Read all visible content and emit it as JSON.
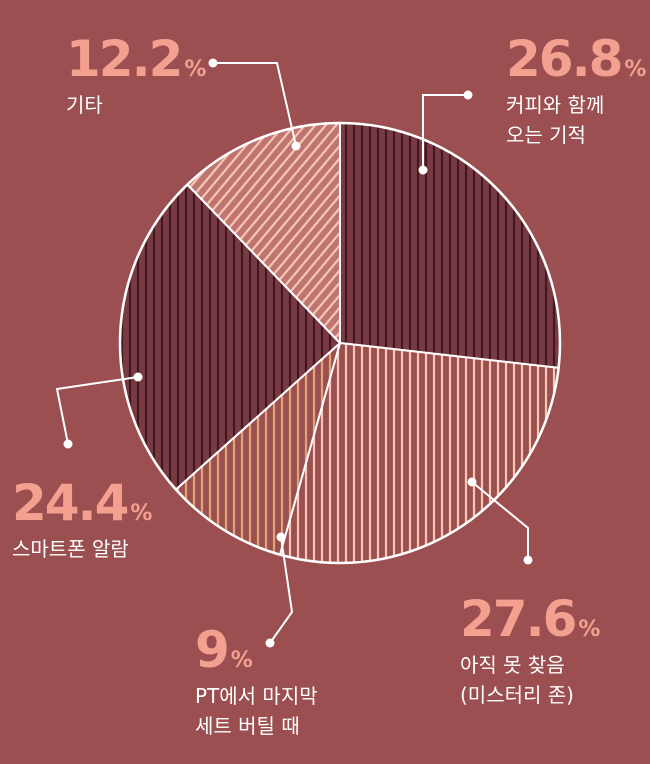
{
  "colors": {
    "background": "#9b4f51",
    "accent_text": "#f4a090",
    "outline": "#ffffff"
  },
  "chart_data": {
    "type": "pie",
    "unit": "%",
    "slices": [
      {
        "label_lines": [
          "커피와 함께",
          "오는 기적"
        ],
        "value": 26.8,
        "value_text": "26.8",
        "fill": "#7b3a42",
        "stripe": "#3d1a22",
        "pattern": "vertical"
      },
      {
        "label_lines": [
          "아직 못 찾음",
          "(미스터리 존)"
        ],
        "value": 27.6,
        "value_text": "27.6",
        "fill": "#9b4f51",
        "stripe": "#f6c8b0",
        "pattern": "vertical"
      },
      {
        "label_lines": [
          "PT에서 마지막",
          "세트 버틸 때"
        ],
        "value": 9,
        "value_text": "9",
        "fill": "#9b4f51",
        "stripe": "#e2a474",
        "pattern": "vertical"
      },
      {
        "label_lines": [
          "스마트폰 알람"
        ],
        "value": 24.4,
        "value_text": "24.4",
        "fill": "#7b3a42",
        "stripe": "#3d1a22",
        "pattern": "vertical"
      },
      {
        "label_lines": [
          "기타"
        ],
        "value": 12.2,
        "value_text": "12.2",
        "fill": "#c07472",
        "stripe": "#f6c8b0",
        "pattern": "diagonal"
      }
    ]
  }
}
